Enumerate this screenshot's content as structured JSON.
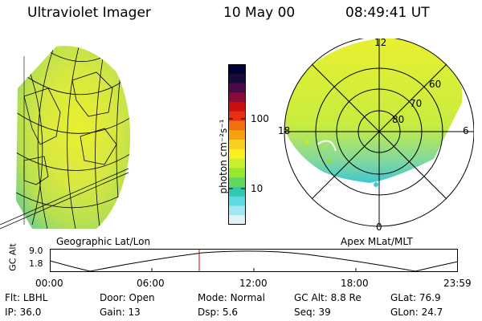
{
  "header": {
    "instrument": "Ultraviolet Imager",
    "date": "10 May 00",
    "time": "08:49:41 UT"
  },
  "left_panel": {
    "label": "Geographic Lat/Lon"
  },
  "right_panel": {
    "label": "Apex MLat/MLT",
    "mlt_labels": {
      "top": "12",
      "right": "6",
      "bottom": "0",
      "left": "18"
    },
    "lat_labels": [
      "60",
      "70",
      "80"
    ]
  },
  "colorbar": {
    "unit_label": "photon cm⁻²s⁻¹",
    "ticks": [
      "100",
      "10"
    ],
    "colors": [
      "#000033",
      "#1a0a3a",
      "#4a0a4a",
      "#8a0a3a",
      "#c81010",
      "#e83010",
      "#f07010",
      "#f8a010",
      "#f8d020",
      "#f8f020",
      "#c8f030",
      "#98e830",
      "#60d860",
      "#30c8b0",
      "#60d8e0",
      "#a0e8f0",
      "#e0f4f8"
    ]
  },
  "altitude_plot": {
    "ylabel": "GC Alt",
    "yticks": [
      "9.0",
      "1.8"
    ],
    "xticks": [
      "00:00",
      "06:00",
      "12:00",
      "18:00",
      "23:59"
    ],
    "current_time_marker": "08:49"
  },
  "status": {
    "flt_label": "Flt:",
    "flt_value": "LBHL",
    "ip_label": "IP:",
    "ip_value": "36.0",
    "door_label": "Door:",
    "door_value": "Open",
    "gain_label": "Gain:",
    "gain_value": "13",
    "mode_label": "Mode:",
    "mode_value": "Normal",
    "dsp_label": "Dsp:",
    "dsp_value": "5.6",
    "gcalt_label": "GC Alt:",
    "gcalt_value": "8.8 Re",
    "seq_label": "Seq:",
    "seq_value": "39",
    "glat_label": "GLat:",
    "glat_value": "76.9",
    "glon_label": "GLon:",
    "glon_value": "24.7"
  }
}
